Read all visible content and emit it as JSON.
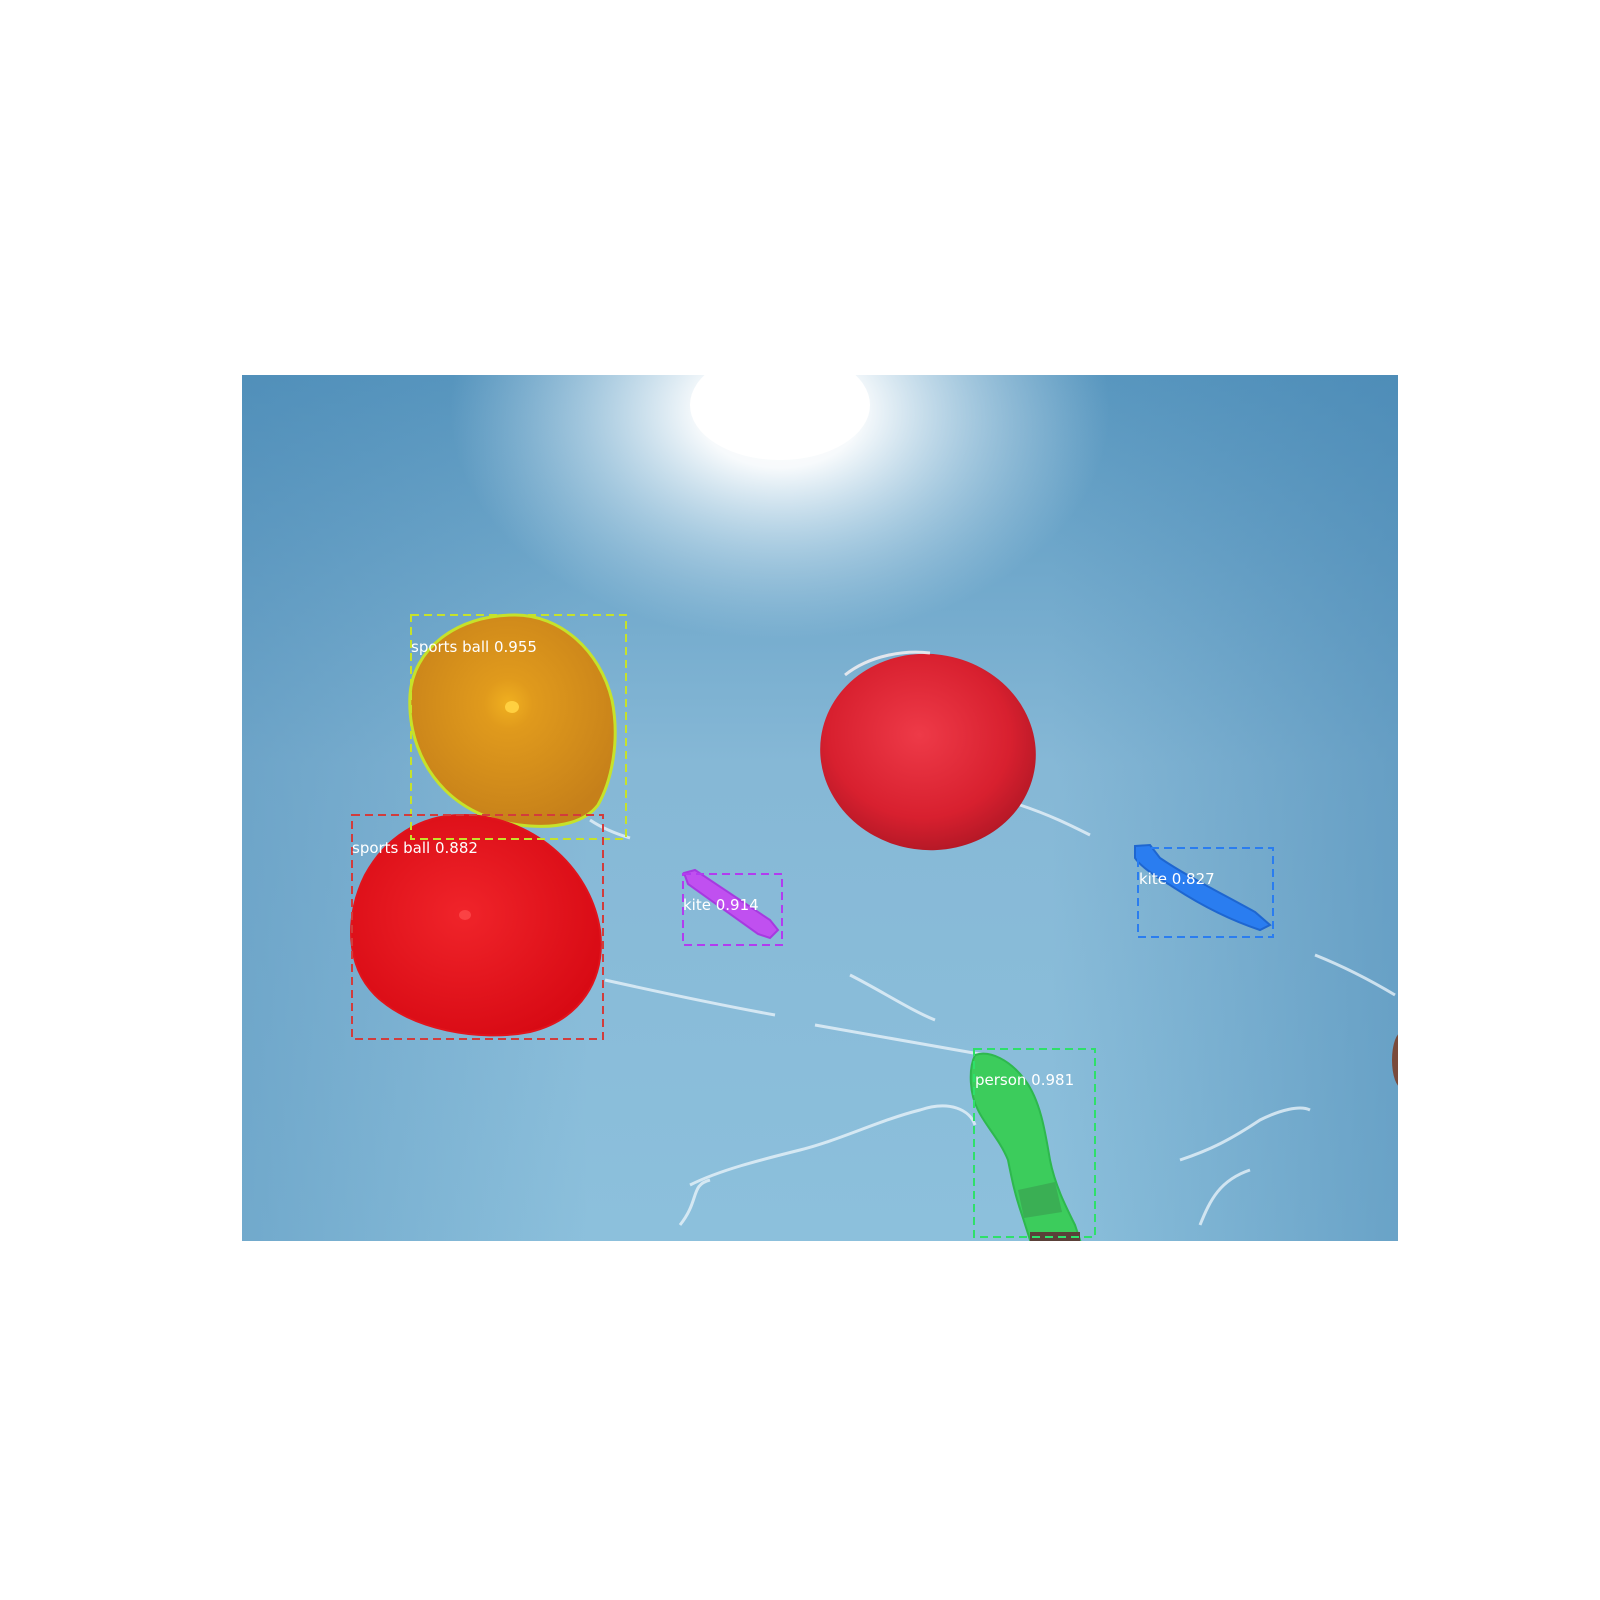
{
  "detections": [
    {
      "id": "ball-orange",
      "label": "sports ball",
      "score": "0.955",
      "caption": "sports ball 0.955",
      "color": "#c6e22a"
    },
    {
      "id": "ball-red-left",
      "label": "sports ball",
      "score": "0.882",
      "caption": "sports ball 0.882",
      "color": "#d23c3c"
    },
    {
      "id": "kite-purple",
      "label": "kite",
      "score": "0.914",
      "caption": "kite 0.914",
      "color": "#b23cf0"
    },
    {
      "id": "kite-blue",
      "label": "kite",
      "score": "0.827",
      "caption": "kite 0.827",
      "color": "#2a7df0"
    },
    {
      "id": "person-green",
      "label": "person",
      "score": "0.981",
      "caption": "person 0.981",
      "color": "#2ee06a"
    }
  ],
  "colors": {
    "sky_dark": "#4f8fb8",
    "sky_light": "#8fc0dc",
    "sun": "#ffffff",
    "balloon_red": "#e0202c",
    "balloon_orange": "#e39a1a",
    "mask_red": "#e8101a",
    "mask_purple": "#c050f0",
    "mask_blue": "#2a7df0",
    "mask_green": "#3ccc5c"
  }
}
